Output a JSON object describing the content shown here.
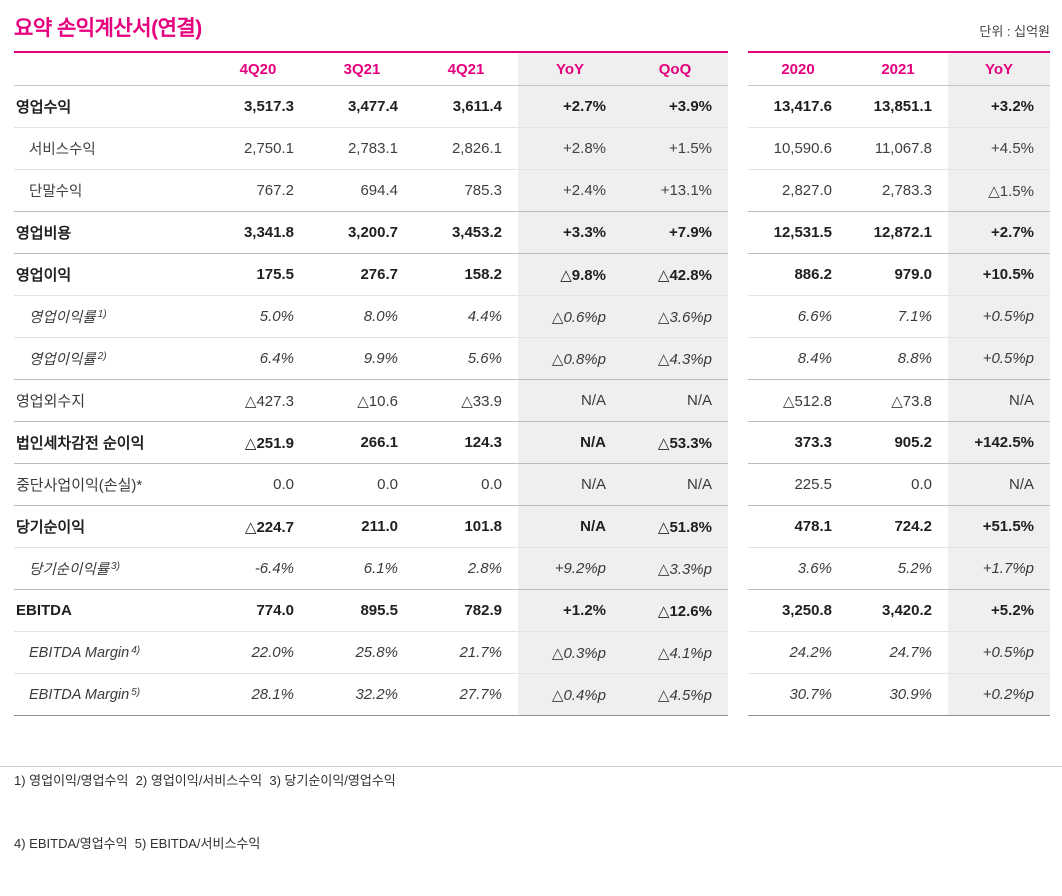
{
  "page": {
    "title": "요약 손익계산서(연결)",
    "unit_label": "단위 : 십억원"
  },
  "table": {
    "quarter_headers": [
      "4Q20",
      "3Q21",
      "4Q21",
      "YoY",
      "QoQ"
    ],
    "annual_headers": [
      "2020",
      "2021",
      "YoY"
    ],
    "rows": [
      {
        "label": "영업수익",
        "style": "bold",
        "border": "light",
        "q": [
          "3,517.3",
          "3,477.4",
          "3,611.4",
          "+2.7%",
          "+3.9%"
        ],
        "a": [
          "13,417.6",
          "13,851.1",
          "+3.2%"
        ]
      },
      {
        "label": "서비스수익",
        "style": "indent",
        "border": "light",
        "q": [
          "2,750.1",
          "2,783.1",
          "2,826.1",
          "+2.8%",
          "+1.5%"
        ],
        "a": [
          "10,590.6",
          "11,067.8",
          "+4.5%"
        ]
      },
      {
        "label": "단말수익",
        "style": "indent",
        "border": "medium",
        "q": [
          "767.2",
          "694.4",
          "785.3",
          "+2.4%",
          "+13.1%"
        ],
        "a": [
          "2,827.0",
          "2,783.3",
          "△1.5%"
        ]
      },
      {
        "label": "영업비용",
        "style": "bold",
        "border": "medium",
        "q": [
          "3,341.8",
          "3,200.7",
          "3,453.2",
          "+3.3%",
          "+7.9%"
        ],
        "a": [
          "12,531.5",
          "12,872.1",
          "+2.7%"
        ]
      },
      {
        "label": "영업이익",
        "style": "bold",
        "border": "light",
        "q": [
          "175.5",
          "276.7",
          "158.2",
          "△9.8%",
          "△42.8%"
        ],
        "a": [
          "886.2",
          "979.0",
          "+10.5%"
        ]
      },
      {
        "label": "영업이익률",
        "sup": "1)",
        "style": "ratio",
        "border": "light",
        "q": [
          "5.0%",
          "8.0%",
          "4.4%",
          "△0.6%p",
          "△3.6%p"
        ],
        "a": [
          "6.6%",
          "7.1%",
          "+0.5%p"
        ]
      },
      {
        "label": "영업이익률",
        "sup": "2)",
        "style": "ratio",
        "border": "medium",
        "q": [
          "6.4%",
          "9.9%",
          "5.6%",
          "△0.8%p",
          "△4.3%p"
        ],
        "a": [
          "8.4%",
          "8.8%",
          "+0.5%p"
        ]
      },
      {
        "label": "영업외수지",
        "style": "normal",
        "border": "medium",
        "q": [
          "△427.3",
          "△10.6",
          "△33.9",
          "N/A",
          "N/A"
        ],
        "a": [
          "△512.8",
          "△73.8",
          "N/A"
        ]
      },
      {
        "label": "법인세차감전 순이익",
        "style": "bold",
        "border": "medium",
        "q": [
          "△251.9",
          "266.1",
          "124.3",
          "N/A",
          "△53.3%"
        ],
        "a": [
          "373.3",
          "905.2",
          "+142.5%"
        ]
      },
      {
        "label": "중단사업이익(손실)*",
        "style": "normal",
        "border": "medium",
        "q": [
          "0.0",
          "0.0",
          "0.0",
          "N/A",
          "N/A"
        ],
        "a": [
          "225.5",
          "0.0",
          "N/A"
        ]
      },
      {
        "label": "당기순이익",
        "style": "bold",
        "border": "light",
        "q": [
          "△224.7",
          "211.0",
          "101.8",
          "N/A",
          "△51.8%"
        ],
        "a": [
          "478.1",
          "724.2",
          "+51.5%"
        ]
      },
      {
        "label": "당기순이익률",
        "sup": "3)",
        "style": "ratio",
        "border": "medium",
        "q": [
          "-6.4%",
          "6.1%",
          "2.8%",
          "+9.2%p",
          "△3.3%p"
        ],
        "a": [
          "3.6%",
          "5.2%",
          "+1.7%p"
        ]
      },
      {
        "label": "EBITDA",
        "style": "bold",
        "border": "light",
        "q": [
          "774.0",
          "895.5",
          "782.9",
          "+1.2%",
          "△12.6%"
        ],
        "a": [
          "3,250.8",
          "3,420.2",
          "+5.2%"
        ]
      },
      {
        "label": "EBITDA Margin",
        "sup": "4)",
        "style": "ratio",
        "border": "light",
        "q": [
          "22.0%",
          "25.8%",
          "21.7%",
          "△0.3%p",
          "△4.1%p"
        ],
        "a": [
          "24.2%",
          "24.7%",
          "+0.5%p"
        ]
      },
      {
        "label": "EBITDA Margin",
        "sup": "5)",
        "style": "ratio",
        "border": "dark",
        "q": [
          "28.1%",
          "32.2%",
          "27.7%",
          "△0.4%p",
          "△4.5%p"
        ],
        "a": [
          "30.7%",
          "30.9%",
          "+0.2%p"
        ]
      }
    ]
  },
  "footnotes": [
    "1) 영업이익/영업수익  2) 영업이익/서비스수익  3) 당기순이익/영업수익",
    "4) EBITDA/영업수익  5) EBITDA/서비스수익"
  ]
}
